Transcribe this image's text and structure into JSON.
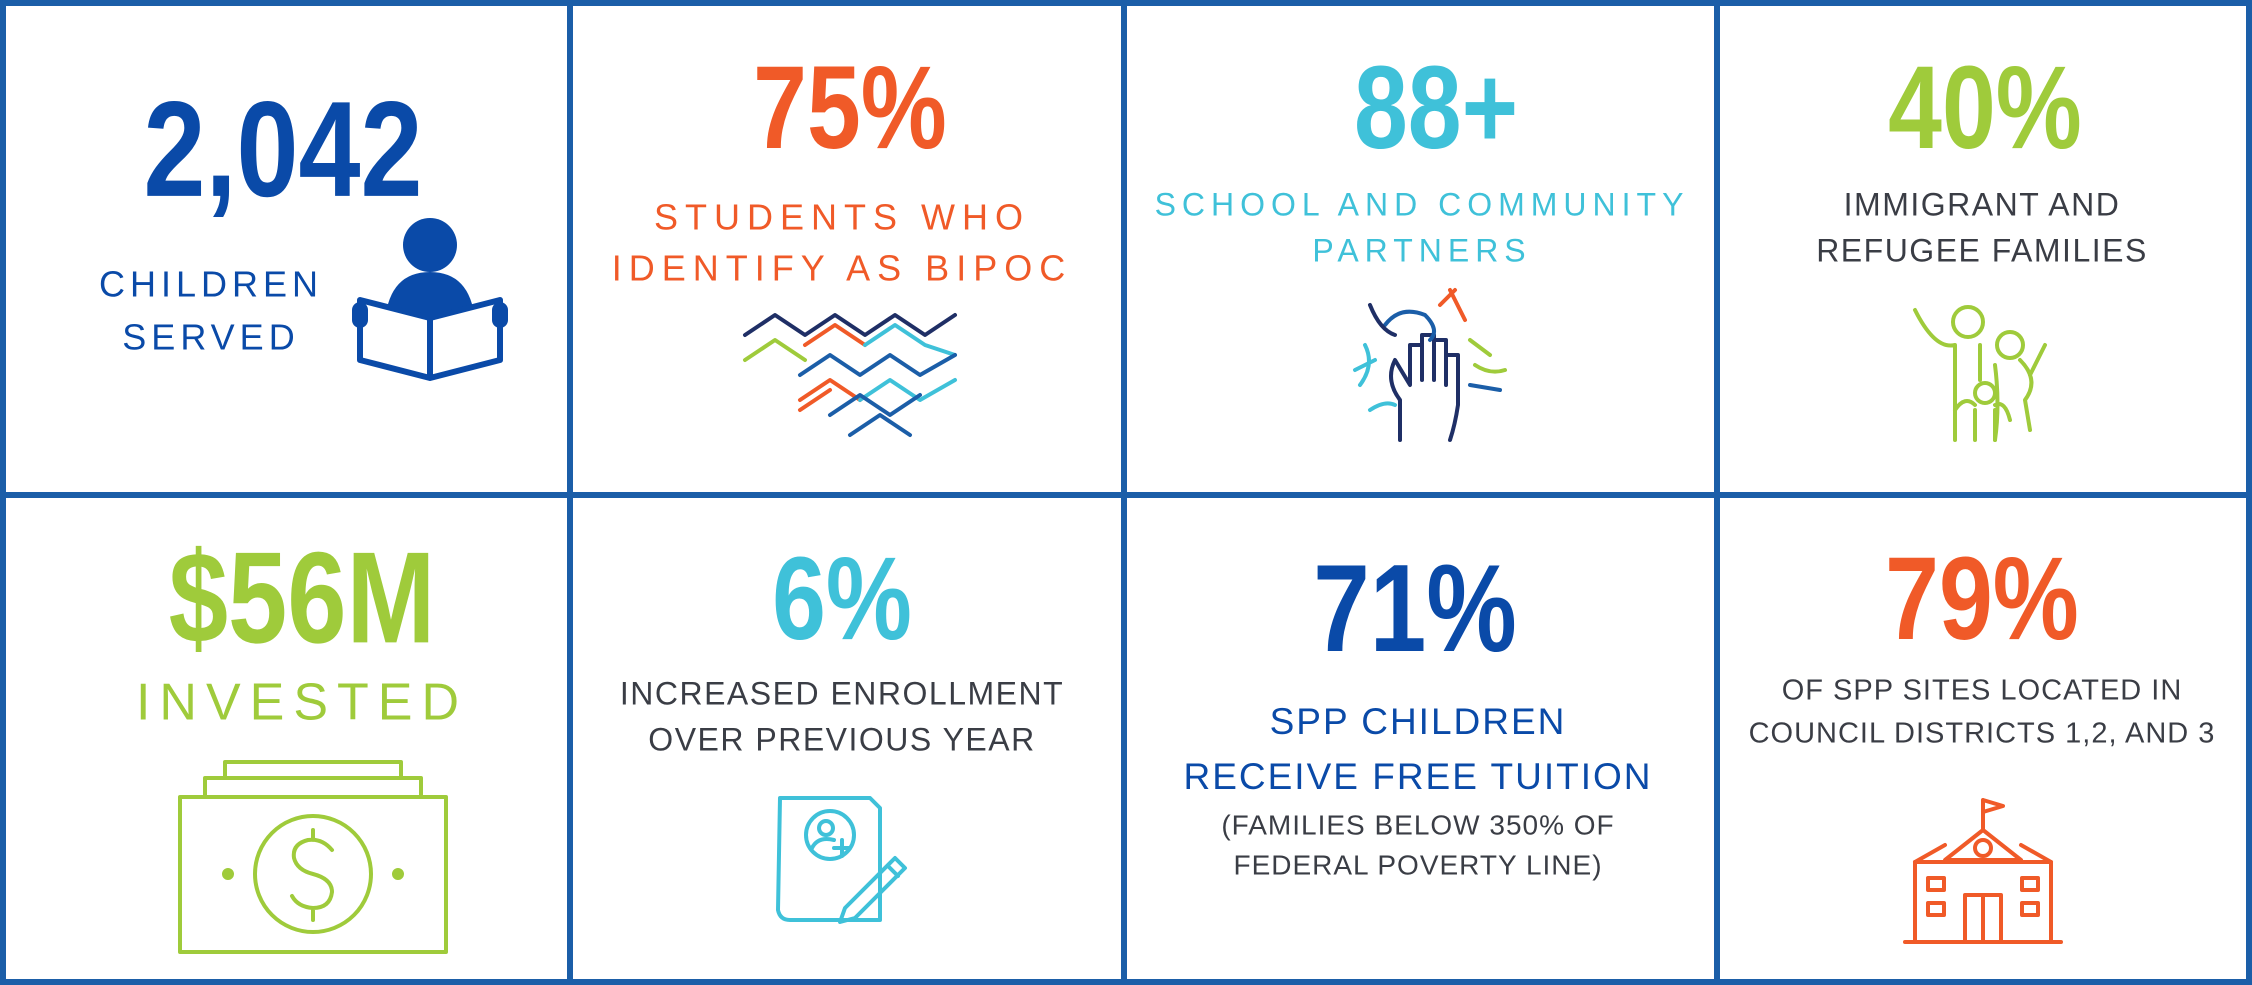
{
  "cells": [
    {
      "stat": "2,042",
      "label": [
        "CHILDREN",
        "SERVED"
      ]
    },
    {
      "stat": "75%",
      "label": [
        "STUDENTS WHO",
        "IDENTIFY AS BIPOC"
      ]
    },
    {
      "stat": "88+",
      "label": [
        "SCHOOL AND COMMUNITY",
        "PARTNERS"
      ]
    },
    {
      "stat": "40%",
      "label": [
        "IMMIGRANT AND",
        "REFUGEE FAMILIES"
      ]
    },
    {
      "stat": "$56M",
      "label": [
        "INVESTED"
      ]
    },
    {
      "stat": "6%",
      "label": [
        "INCREASED ENROLLMENT",
        "OVER PREVIOUS YEAR"
      ]
    },
    {
      "stat": "71%",
      "label": [
        "SPP CHILDREN",
        "RECEIVE FREE TUITION"
      ],
      "note": [
        "(FAMILIES BELOW 350% OF",
        "FEDERAL POVERTY LINE)"
      ]
    },
    {
      "stat": "79%",
      "label": [
        "OF SPP SITES LOCATED IN",
        "COUNCIL DISTRICTS 1,2, AND 3"
      ]
    }
  ]
}
